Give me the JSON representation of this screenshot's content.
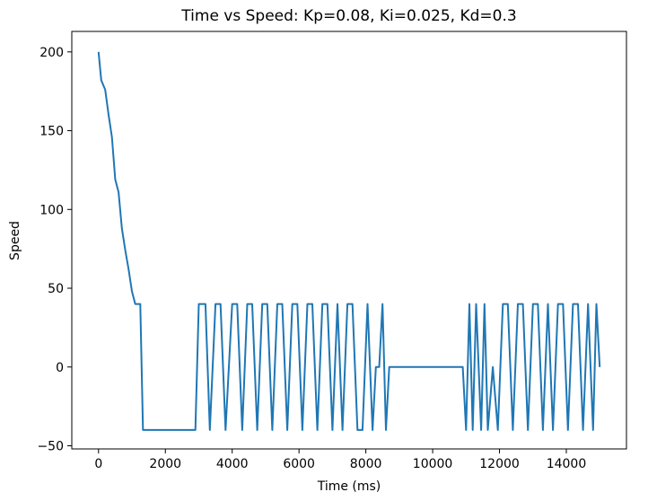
{
  "chart_data": {
    "type": "line",
    "title": "Time vs Speed: Kp=0.08, Ki=0.025, Kd=0.3",
    "xlabel": "Time (ms)",
    "ylabel": "Speed",
    "xlim": [
      -800,
      15800
    ],
    "ylim": [
      -52,
      213
    ],
    "xticks": [
      0,
      2000,
      4000,
      6000,
      8000,
      10000,
      12000,
      14000
    ],
    "xtick_labels": [
      "0",
      "2000",
      "4000",
      "6000",
      "8000",
      "10000",
      "12000",
      "14000"
    ],
    "yticks": [
      -50,
      0,
      50,
      100,
      150,
      200
    ],
    "ytick_labels": [
      "−50",
      "0",
      "50",
      "100",
      "150",
      "200"
    ],
    "grid": false,
    "series": [
      {
        "color": "#1f77b4",
        "x": [
          0,
          80,
          200,
          300,
          400,
          500,
          600,
          700,
          800,
          900,
          1000,
          1100,
          1250,
          1330,
          2000,
          2900,
          3000,
          3200,
          3330,
          3500,
          3650,
          3800,
          4000,
          4150,
          4300,
          4450,
          4600,
          4750,
          4900,
          5050,
          5200,
          5350,
          5500,
          5650,
          5800,
          5950,
          6100,
          6250,
          6400,
          6550,
          6700,
          6850,
          7000,
          7150,
          7300,
          7450,
          7600,
          7750,
          7900,
          8050,
          8200,
          8300,
          8400,
          8500,
          8600,
          8700,
          9000,
          10000,
          10900,
          11000,
          11100,
          11200,
          11300,
          11450,
          11550,
          11650,
          11800,
          11950,
          12100,
          12250,
          12400,
          12550,
          12700,
          12850,
          13000,
          13150,
          13300,
          13450,
          13600,
          13750,
          13900,
          14050,
          14200,
          14350,
          14500,
          14650,
          14800,
          14900,
          15000
        ],
        "y": [
          200,
          182,
          176,
          160,
          146,
          119,
          111,
          88,
          74,
          62,
          48,
          40,
          40,
          -40,
          -40,
          -40,
          40,
          40,
          -40,
          40,
          40,
          -40,
          40,
          40,
          -40,
          40,
          40,
          -40,
          40,
          40,
          -40,
          40,
          40,
          -40,
          40,
          40,
          -40,
          40,
          40,
          -40,
          40,
          40,
          -40,
          40,
          -40,
          40,
          40,
          -40,
          -40,
          40,
          -40,
          0,
          0,
          40,
          -40,
          0,
          0,
          0,
          0,
          -40,
          40,
          -40,
          40,
          -40,
          40,
          -40,
          0,
          -40,
          40,
          40,
          -40,
          40,
          40,
          -40,
          40,
          40,
          -40,
          40,
          -40,
          40,
          40,
          -40,
          40,
          40,
          -40,
          40,
          -40,
          40,
          0
        ]
      }
    ]
  }
}
